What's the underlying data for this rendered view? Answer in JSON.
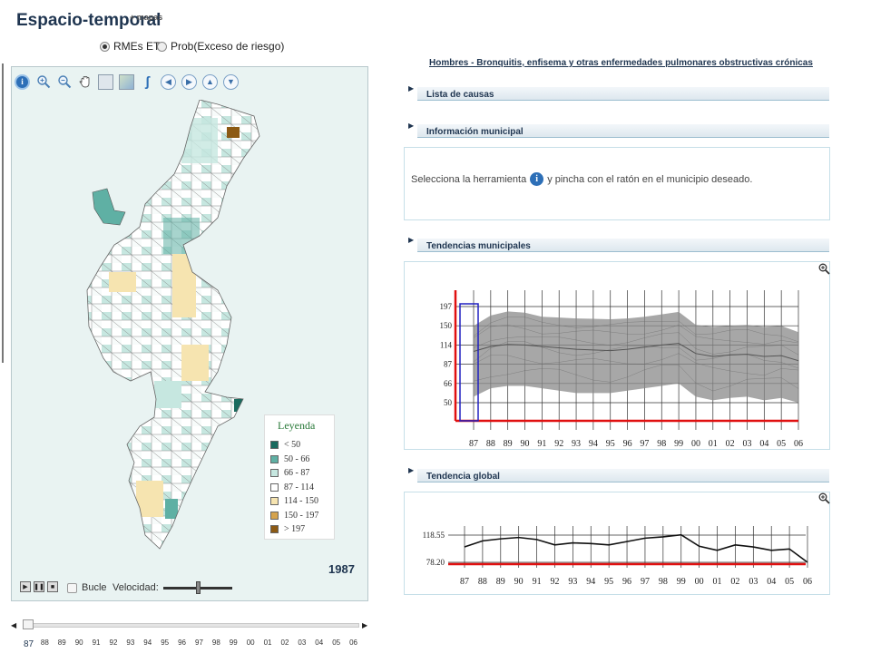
{
  "header": {
    "title": "Espacio-temporal",
    "maps_link": "+ mapas"
  },
  "mode": {
    "options": [
      "RMEs ET",
      "Prob(Exceso de riesgo)"
    ],
    "selected": 0
  },
  "toolbar": {
    "tools": [
      "info-icon",
      "zoom-in-icon",
      "zoom-out-icon",
      "pan-hand-icon",
      "full-extent-icon",
      "map-extent-icon",
      "measure-icon",
      "arrow-left-icon",
      "arrow-right-icon",
      "arrow-up-icon",
      "arrow-down-icon"
    ]
  },
  "legend": {
    "title": "Leyenda",
    "items": [
      {
        "label": "< 50",
        "color": "#1a6a5e"
      },
      {
        "label": "50 - 66",
        "color": "#5fb0a4"
      },
      {
        "label": "66 - 87",
        "color": "#c6e7e0"
      },
      {
        "label": "87 - 114",
        "color": "#ffffff"
      },
      {
        "label": "114 - 150",
        "color": "#f6e4b0"
      },
      {
        "label": "150 - 197",
        "color": "#d5a34d"
      },
      {
        "label": "> 197",
        "color": "#8c5a14"
      }
    ]
  },
  "map": {
    "year": "1987"
  },
  "player": {
    "loop_label": "Bucle",
    "speed_label": "Velocidad:",
    "speed_level": 0.5
  },
  "timeline": {
    "labels": [
      "87",
      "88",
      "89",
      "90",
      "91",
      "92",
      "93",
      "94",
      "95",
      "96",
      "97",
      "98",
      "99",
      "00",
      "01",
      "02",
      "03",
      "04",
      "05",
      "06"
    ],
    "selected_index": 0
  },
  "right": {
    "disease_title": "Hombres - Bronquitis, enfisema y otras enfermedades pulmonares obstructivas crónicas",
    "sections": {
      "causes": "Lista de causas",
      "municipal_info": "Información municipal",
      "municipal_trends": "Tendencias municipales",
      "global_trend": "Tendencia global"
    },
    "info_text_before": "Selecciona la herramienta",
    "info_text_after": "y pincha con el ratón en el municipio deseado."
  },
  "chart_data": [
    {
      "type": "line",
      "title": "Tendencias municipales",
      "categories": [
        "87",
        "88",
        "89",
        "90",
        "91",
        "92",
        "93",
        "94",
        "95",
        "96",
        "97",
        "98",
        "99",
        "00",
        "01",
        "02",
        "03",
        "04",
        "05",
        "06"
      ],
      "y_ticks": [
        50,
        66,
        87,
        114,
        150,
        197
      ],
      "highlighted_category": "87",
      "band_upper": [
        150,
        175,
        185,
        182,
        172,
        170,
        168,
        167,
        166,
        168,
        172,
        178,
        184,
        152,
        148,
        150,
        152,
        148,
        150,
        138
      ],
      "band_center": [
        105,
        112,
        115,
        114,
        112,
        110,
        108,
        107,
        106,
        108,
        111,
        114,
        117,
        102,
        98,
        100,
        101,
        98,
        99,
        92
      ],
      "band_lower": [
        55,
        62,
        64,
        64,
        62,
        60,
        58,
        58,
        58,
        60,
        62,
        64,
        66,
        55,
        52,
        54,
        55,
        52,
        54,
        50
      ],
      "grid": true
    },
    {
      "type": "line",
      "title": "Tendencia global",
      "categories": [
        "87",
        "88",
        "89",
        "90",
        "91",
        "92",
        "93",
        "94",
        "95",
        "96",
        "97",
        "98",
        "99",
        "00",
        "01",
        "02",
        "03",
        "04",
        "05",
        "06"
      ],
      "y_ticks": [
        78.2,
        118.55
      ],
      "series": [
        {
          "values": [
            101,
            110,
            113,
            115,
            112,
            104,
            107,
            106,
            104,
            109,
            114,
            116,
            119,
            102,
            96,
            104,
            101,
            96,
            98,
            78.2
          ]
        }
      ],
      "grid": true
    }
  ]
}
